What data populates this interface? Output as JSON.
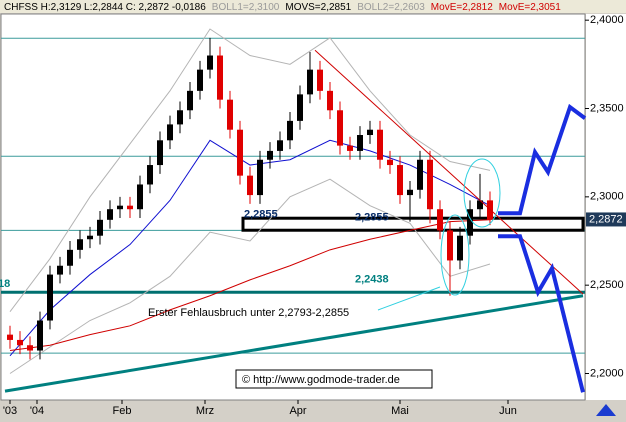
{
  "chart_data": {
    "type": "candlestick",
    "header": [
      {
        "text": "CHFSS H:2,3129 L:2,2844 C: 2,2872 -0,0186",
        "color": "#000000"
      },
      {
        "text": "BOLL1=2,3100",
        "color": "#9a9a9a"
      },
      {
        "text": "MOVS=2,2851",
        "color": "#000000"
      },
      {
        "text": "BOLL2=2,2603",
        "color": "#9a9a9a"
      },
      {
        "text": "MovE=2,2812",
        "color": "#d00000"
      },
      {
        "text": "MovE=2,3051",
        "color": "#d00000"
      }
    ],
    "x": [
      0,
      1,
      2,
      3,
      4,
      5,
      6,
      7,
      8,
      9,
      10,
      11,
      12,
      13,
      14,
      15,
      16,
      17,
      18,
      19,
      20,
      21,
      22,
      23,
      24,
      25,
      26,
      27,
      28,
      29,
      30,
      31,
      32,
      33,
      34,
      35,
      36,
      37,
      38,
      39,
      40,
      41,
      42,
      43,
      44,
      45,
      46,
      47,
      48
    ],
    "open": [
      2.222,
      2.219,
      2.216,
      2.213,
      2.23,
      2.256,
      2.261,
      2.27,
      2.276,
      2.278,
      2.287,
      2.293,
      2.295,
      2.293,
      2.307,
      2.318,
      2.332,
      2.341,
      2.349,
      2.36,
      2.372,
      2.38,
      2.355,
      2.338,
      2.312,
      2.301,
      2.321,
      2.326,
      2.332,
      2.343,
      2.358,
      2.372,
      2.36,
      2.349,
      2.329,
      2.326,
      2.335,
      2.338,
      2.321,
      2.318,
      2.301,
      2.304,
      2.321,
      2.293,
      2.281,
      2.264,
      2.278,
      2.293,
      2.298
    ],
    "high": [
      2.227,
      2.224,
      2.221,
      2.235,
      2.261,
      2.266,
      2.275,
      2.281,
      2.283,
      2.292,
      2.298,
      2.3,
      2.3,
      2.312,
      2.323,
      2.337,
      2.346,
      2.354,
      2.365,
      2.377,
      2.39,
      2.385,
      2.36,
      2.343,
      2.317,
      2.326,
      2.331,
      2.337,
      2.348,
      2.363,
      2.382,
      2.377,
      2.365,
      2.354,
      2.334,
      2.34,
      2.343,
      2.343,
      2.326,
      2.323,
      2.309,
      2.326,
      2.326,
      2.298,
      2.286,
      2.283,
      2.298,
      2.313,
      2.303
    ],
    "low": [
      2.214,
      2.211,
      2.208,
      2.208,
      2.225,
      2.251,
      2.256,
      2.265,
      2.271,
      2.273,
      2.282,
      2.288,
      2.288,
      2.288,
      2.302,
      2.313,
      2.327,
      2.336,
      2.344,
      2.355,
      2.367,
      2.35,
      2.333,
      2.307,
      2.296,
      2.296,
      2.316,
      2.321,
      2.327,
      2.338,
      2.353,
      2.355,
      2.344,
      2.324,
      2.321,
      2.321,
      2.33,
      2.316,
      2.313,
      2.296,
      2.286,
      2.299,
      2.285,
      2.276,
      2.244,
      2.259,
      2.273,
      2.288,
      2.284
    ],
    "close": [
      2.219,
      2.216,
      2.213,
      2.23,
      2.256,
      2.261,
      2.27,
      2.276,
      2.278,
      2.287,
      2.293,
      2.295,
      2.293,
      2.307,
      2.318,
      2.332,
      2.341,
      2.349,
      2.36,
      2.372,
      2.38,
      2.355,
      2.338,
      2.312,
      2.301,
      2.321,
      2.326,
      2.332,
      2.343,
      2.358,
      2.372,
      2.36,
      2.349,
      2.329,
      2.326,
      2.335,
      2.338,
      2.321,
      2.318,
      2.301,
      2.304,
      2.321,
      2.293,
      2.281,
      2.264,
      2.278,
      2.293,
      2.298,
      2.287
    ],
    "up_color": "#000000",
    "down_color": "#e00000",
    "overlays": [
      {
        "color": "#b4b4b4",
        "width": 1,
        "x": [
          0,
          4,
          8,
          12,
          16,
          20,
          24,
          28,
          32,
          36,
          40,
          44,
          48
        ],
        "values": [
          2.235,
          2.265,
          2.3,
          2.33,
          2.36,
          2.395,
          2.38,
          2.375,
          2.39,
          2.36,
          2.335,
          2.32,
          2.315
        ]
      },
      {
        "color": "#b4b4b4",
        "width": 1,
        "x": [
          0,
          4,
          8,
          12,
          16,
          20,
          24,
          28,
          32,
          36,
          40,
          44,
          48
        ],
        "values": [
          2.2,
          2.215,
          2.23,
          2.24,
          2.255,
          2.28,
          2.275,
          2.3,
          2.31,
          2.295,
          2.285,
          2.255,
          2.262
        ]
      },
      {
        "color": "#1010d0",
        "width": 1,
        "x": [
          0,
          4,
          8,
          12,
          16,
          20,
          24,
          28,
          32,
          36,
          40,
          44,
          48
        ],
        "values": [
          2.21,
          2.236,
          2.256,
          2.273,
          2.298,
          2.332,
          2.318,
          2.321,
          2.332,
          2.326,
          2.318,
          2.307,
          2.295
        ]
      },
      {
        "color": "#d00000",
        "width": 1,
        "x": [
          0,
          4,
          8,
          12,
          16,
          20,
          24,
          28,
          32,
          36,
          40,
          44,
          48
        ],
        "values": [
          2.213,
          2.216,
          2.222,
          2.227,
          2.236,
          2.244,
          2.253,
          2.261,
          2.27,
          2.276,
          2.281,
          2.286,
          2.287
        ]
      },
      {
        "color": "#d00000",
        "width": 1,
        "x": [
          30.5,
          57.3
        ],
        "values": [
          2.383,
          2.245
        ]
      },
      {
        "color": "#008080",
        "width": 3,
        "x": [
          -0.5,
          57.3
        ],
        "values": [
          2.19,
          2.244
        ]
      },
      {
        "color": "#1a2ee0",
        "width": 4,
        "x": [
          48.8,
          51,
          52.5,
          53.8,
          56,
          57.5
        ],
        "values": [
          2.2907,
          2.2907,
          2.3253,
          2.314,
          2.3508,
          2.3445
        ]
      },
      {
        "color": "#1a2ee0",
        "width": 4,
        "x": [
          48.8,
          51,
          52.8,
          54.2,
          57.3
        ],
        "values": [
          2.2777,
          2.2777,
          2.246,
          2.2596,
          2.1894
        ]
      }
    ],
    "levels": [
      {
        "value": 2.3898,
        "color": "#3c9c9c",
        "width": 1
      },
      {
        "value": 2.323,
        "color": "#3c9c9c",
        "width": 1
      },
      {
        "value": 2.281,
        "color": "#3c9c9c",
        "width": 1
      },
      {
        "value": 2.246,
        "color": "#007070",
        "width": 3
      },
      {
        "value": 2.2115,
        "color": "#3c9c9c",
        "width": 1
      }
    ],
    "box": {
      "x": [
        23.3,
        57.3
      ],
      "values": [
        2.2811,
        2.2879
      ]
    },
    "level_labels": [
      {
        "value": 2.2855,
        "label": "2,2855",
        "x": 23.4
      },
      {
        "value": 2.2838,
        "label": "2,2855",
        "x": 34.5
      },
      {
        "value": 2.2485,
        "label": "2,2438",
        "x": 34.5
      },
      {
        "value": 2.246,
        "label": "18",
        "x": -1.2
      }
    ],
    "annotations": [
      "Erster Fehlausbruch unter 2,2793-2,2855",
      "© http://www.godmode-trader.de"
    ],
    "last": {
      "value": 2.2872,
      "label": "2,2872"
    },
    "xlim": [
      -1,
      57.5
    ],
    "xticks": [
      {
        "value": 0,
        "label": "'03"
      },
      {
        "value": 2.7,
        "label": "'04"
      },
      {
        "value": 11.2,
        "label": "Feb"
      },
      {
        "value": 19.5,
        "label": "Mrz"
      },
      {
        "value": 28.8,
        "label": "Apr"
      },
      {
        "value": 39,
        "label": "Mai"
      },
      {
        "value": 49.8,
        "label": "Jun"
      }
    ],
    "ylim": [
      2.185,
      2.4035
    ],
    "yticks": [
      {
        "value": 2.2,
        "label": "2,2000"
      },
      {
        "value": 2.25,
        "label": "2,2500"
      },
      {
        "value": 2.3,
        "label": "2,3000"
      },
      {
        "value": 2.35,
        "label": "2,3500"
      },
      {
        "value": 2.4,
        "label": "2,4000"
      }
    ]
  }
}
